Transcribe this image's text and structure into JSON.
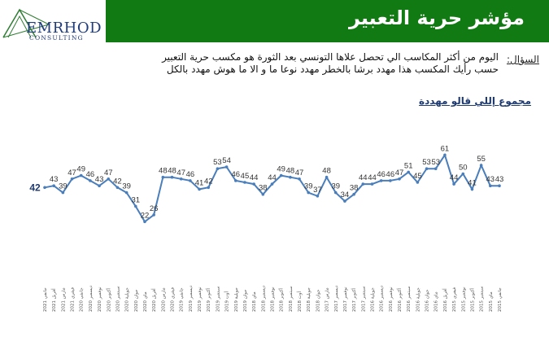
{
  "logo": {
    "name": "EMRHOD",
    "subtitle": "CONSULTING"
  },
  "header": {
    "title": "مؤشر حرية التعبير"
  },
  "question": {
    "label": "السؤال:",
    "text_line1": "اليوم من أكثر المكاسب الي تحصل علاها التونسي بعد الثورة هو مكسب حرية التعبير",
    "text_line2": "حسب رأيك المكسب هذا مهدد برشا بالخطر مهدد نوعا ما و الا ما هوش مهدد بالكل"
  },
  "group_title": "مجموع إللي قالو مهددة",
  "chart_data": {
    "type": "line",
    "title": "",
    "xlabel": "",
    "ylabel": "",
    "ylim": [
      15,
      65
    ],
    "grid": false,
    "legend": "none",
    "color": "#4a7ebb",
    "values": [
      42,
      43,
      39,
      47,
      49,
      46,
      43,
      47,
      42,
      39,
      31,
      22,
      26,
      48,
      48,
      47,
      46,
      41,
      42,
      53,
      54,
      46,
      45,
      44,
      38,
      44,
      49,
      48,
      47,
      39,
      37,
      48,
      39,
      34,
      38,
      44,
      44,
      46,
      46,
      47,
      51,
      45,
      53,
      53,
      61,
      44,
      50,
      41,
      55,
      43,
      43
    ],
    "categories": [
      "جانفي 2021",
      "أفريل 2021",
      "مارس 2021",
      "فيفري 2021",
      "جانفي 2020",
      "ديسمبر 2020",
      "نوفمبر 2020",
      "أكتوبر 2020",
      "سبتمبر 2020",
      "جويلية 2020",
      "جوان 2020",
      "ماي 2020",
      "أفريل 2020",
      "مارس 2020",
      "فيفري 2020",
      "جانفي 2019",
      "ديسمبر 2019",
      "نوفمبر 2019",
      "أكتوبر 2019",
      "سبتمبر 2019",
      "أوت 2019",
      "جويلية 2019",
      "جوان 2019",
      "ماي 2018",
      "ديسمبر 2018",
      "نوفمبر 2018",
      "أكتوبر 2018",
      "سبتمبر 2018",
      "أوت 2018",
      "جويلية 2018",
      "جوان 2018",
      "مارس 2017",
      "ديسمبر 2017",
      "نوفمبر 2017",
      "أكتوبر 2017",
      "سبتمبر 2017",
      "جويلية 2016",
      "ديسمبر 2016",
      "نوفمبر 2016",
      "أكتوبر 2016",
      "سبتمبر 2016",
      "جويلية 2016",
      "جوان 2016",
      "ماي 2016",
      "أفريل 2016",
      "فيفري 2015",
      "نوفمبر 2015",
      "أكتوبر 2015",
      "سبتمبر 2015",
      "ماي 2015",
      "جانفي 2015"
    ]
  }
}
